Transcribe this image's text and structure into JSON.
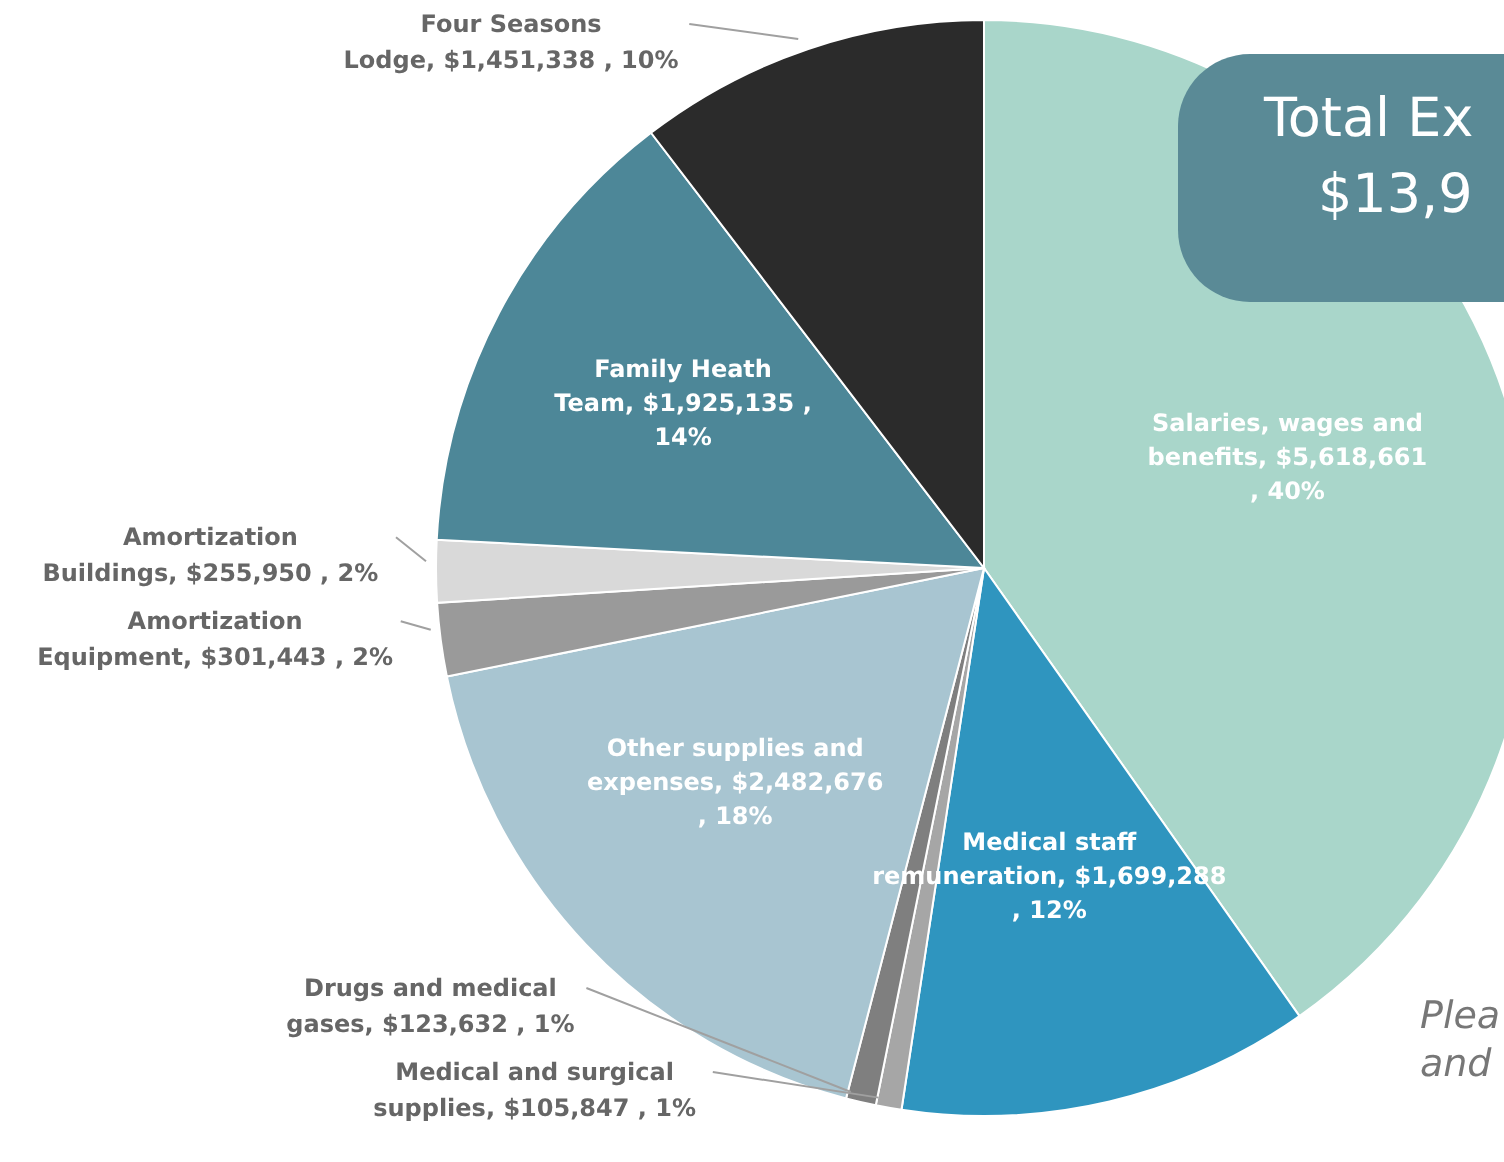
{
  "chart_data": {
    "type": "pie",
    "title": "Total Ex",
    "subtitle": "$13,9",
    "categories": [
      "Salaries, wages and benefits",
      "Medical staff remuneration",
      "Medical and surgical supplies",
      "Drugs and medical gases",
      "Other supplies and expenses",
      "Amortization Equipment",
      "Amortization Buildings",
      "Family Heath Team",
      "Four Seasons Lodge"
    ],
    "values": [
      5618661,
      1699288,
      105847,
      123632,
      2482676,
      301443,
      255950,
      1925135,
      1451338
    ],
    "value_labels": [
      "$5,618,661 , 40%",
      "$1,699,288 , 12%",
      "$105,847 , 1%",
      "$123,632 , 1%",
      "$2,482,676 , 18%",
      "$301,443 , 2%",
      "$255,950 , 2%",
      "$1,925,135 , 14%",
      "$1,451,338 , 10%"
    ],
    "colors": [
      "#a9d6ca",
      "#2f95bf",
      "#a6a6a6",
      "#7f7f7f",
      "#a8c5d1",
      "#9a9a9a",
      "#d9d9d9",
      "#4d8798",
      "#2b2b2b"
    ],
    "annotations": [
      "Plea",
      "and"
    ]
  }
}
